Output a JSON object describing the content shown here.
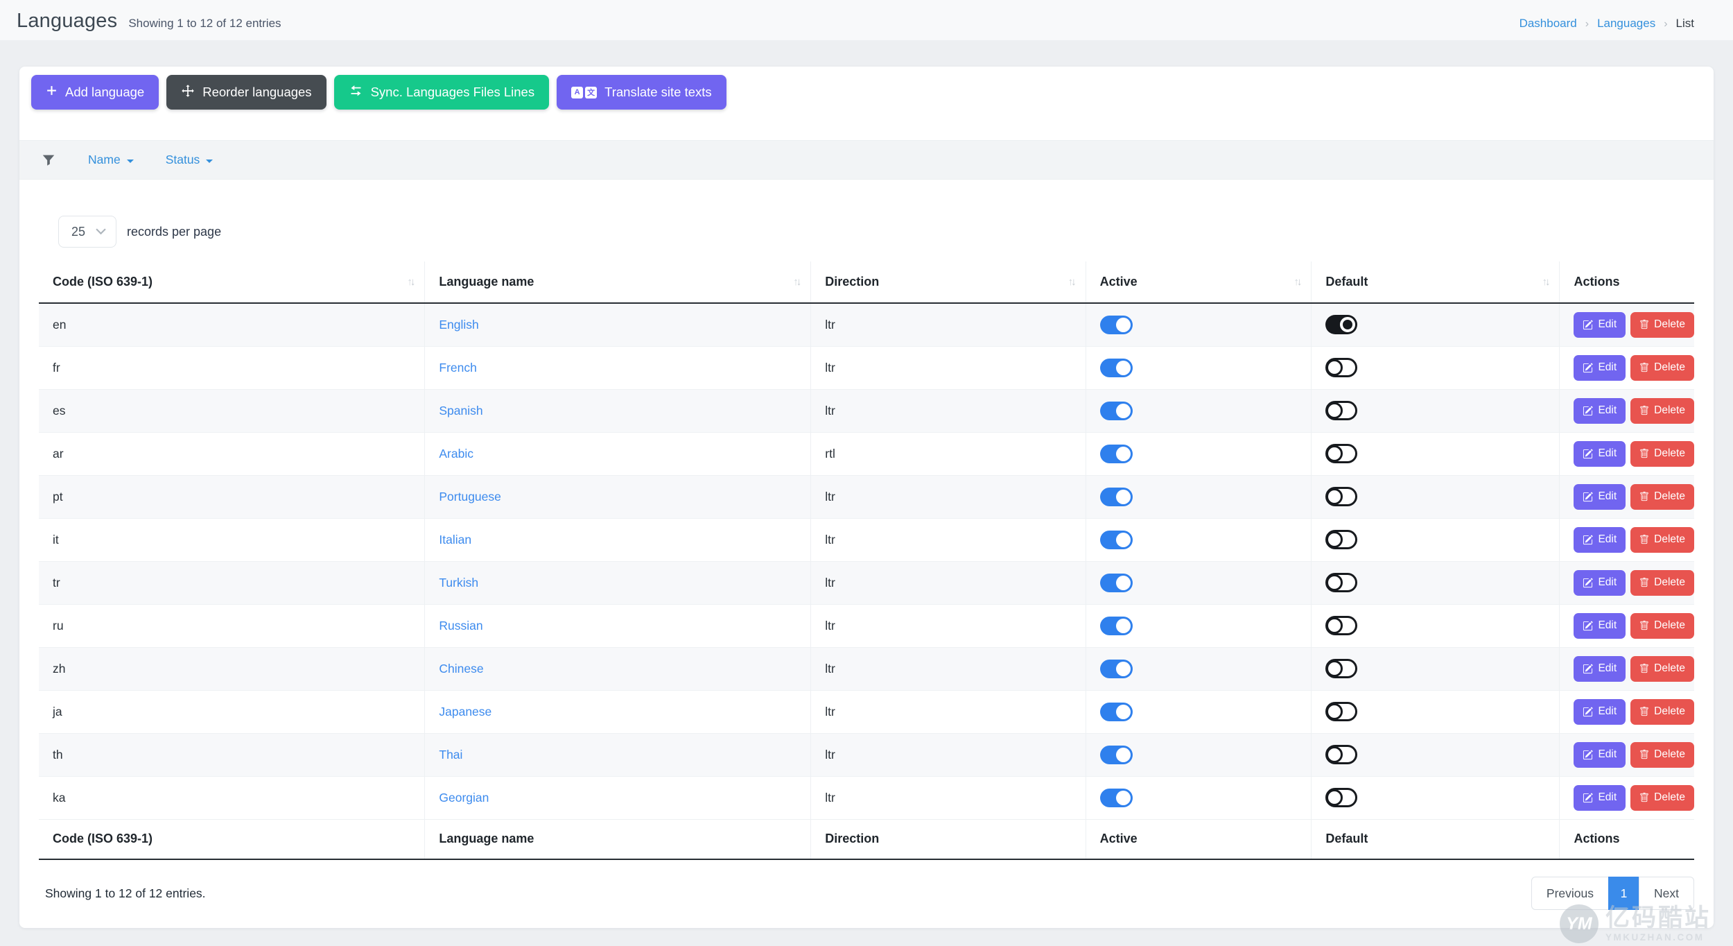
{
  "header": {
    "title": "Languages",
    "subtitle": "Showing 1 to 12 of 12 entries",
    "breadcrumb": [
      {
        "label": "Dashboard",
        "link": true
      },
      {
        "label": "Languages",
        "link": true
      },
      {
        "label": "List",
        "link": false
      }
    ]
  },
  "toolbar": {
    "buttons": [
      {
        "label": "Add language",
        "icon": "plus-icon",
        "color": "#7165f0"
      },
      {
        "label": "Reorder languages",
        "icon": "move-icon",
        "color": "#464c51"
      },
      {
        "label": "Sync. Languages Files Lines",
        "icon": "sync-icon",
        "color": "#16c98b"
      },
      {
        "label": "Translate site texts",
        "icon": "translate-icon",
        "color": "#7165f0"
      }
    ]
  },
  "filterbar": {
    "icon": "funnel-icon",
    "filters": [
      {
        "label": "Name"
      },
      {
        "label": "Status"
      }
    ]
  },
  "records_per_page": {
    "selected": "25",
    "label": "records per page"
  },
  "table": {
    "columns": [
      {
        "key": "code",
        "label": "Code (ISO 639-1)",
        "sortable": true
      },
      {
        "key": "name",
        "label": "Language name",
        "sortable": true
      },
      {
        "key": "direction",
        "label": "Direction",
        "sortable": true
      },
      {
        "key": "active",
        "label": "Active",
        "sortable": true
      },
      {
        "key": "default",
        "label": "Default",
        "sortable": true
      },
      {
        "key": "actions",
        "label": "Actions",
        "sortable": false
      }
    ],
    "rows": [
      {
        "code": "en",
        "name": "English",
        "direction": "ltr",
        "active": true,
        "default": true
      },
      {
        "code": "fr",
        "name": "French",
        "direction": "ltr",
        "active": true,
        "default": false
      },
      {
        "code": "es",
        "name": "Spanish",
        "direction": "ltr",
        "active": true,
        "default": false
      },
      {
        "code": "ar",
        "name": "Arabic",
        "direction": "rtl",
        "active": true,
        "default": false
      },
      {
        "code": "pt",
        "name": "Portuguese",
        "direction": "ltr",
        "active": true,
        "default": false
      },
      {
        "code": "it",
        "name": "Italian",
        "direction": "ltr",
        "active": true,
        "default": false
      },
      {
        "code": "tr",
        "name": "Turkish",
        "direction": "ltr",
        "active": true,
        "default": false
      },
      {
        "code": "ru",
        "name": "Russian",
        "direction": "ltr",
        "active": true,
        "default": false
      },
      {
        "code": "zh",
        "name": "Chinese",
        "direction": "ltr",
        "active": true,
        "default": false
      },
      {
        "code": "ja",
        "name": "Japanese",
        "direction": "ltr",
        "active": true,
        "default": false
      },
      {
        "code": "th",
        "name": "Thai",
        "direction": "ltr",
        "active": true,
        "default": false
      },
      {
        "code": "ka",
        "name": "Georgian",
        "direction": "ltr",
        "active": true,
        "default": false
      }
    ],
    "row_actions": {
      "edit": "Edit",
      "delete": "Delete"
    }
  },
  "footer": {
    "summary": "Showing 1 to 12 of 12 entries.",
    "pagination": {
      "previous": "Previous",
      "current": "1",
      "next": "Next"
    }
  },
  "watermark": {
    "logo": "YM",
    "title": "亿码酷站",
    "domain": "YMKUZHAN.COM"
  },
  "theme": {
    "primary": "#7165f0",
    "dark": "#464c51",
    "success": "#16c98b",
    "danger": "#e8544f",
    "link_blue": "#3490dc",
    "active_toggle": "#2f80ed",
    "default_toggle": "#16191d",
    "pagination_active": "#3a8bea"
  }
}
